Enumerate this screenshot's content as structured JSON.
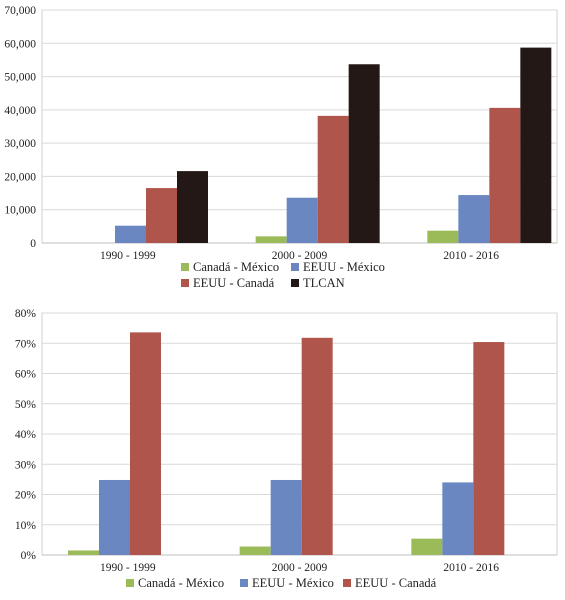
{
  "colors": {
    "Canadá - México": "#9bbb59",
    "EEUU - México": "#6a87c2",
    "EEUU - Canadá": "#b0554b",
    "TLCAN": "#231815"
  },
  "chart_data": [
    {
      "type": "bar",
      "categories": [
        "1990 - 1999",
        "2000 - 2009",
        "2010 - 2016"
      ],
      "series": [
        {
          "name": "Canadá - México",
          "values": [
            0,
            2000,
            3700
          ]
        },
        {
          "name": "EEUU - México",
          "values": [
            5200,
            13600,
            14400
          ]
        },
        {
          "name": "EEUU - Canadá",
          "values": [
            16500,
            38200,
            40600
          ]
        },
        {
          "name": "TLCAN",
          "values": [
            21600,
            53700,
            58700
          ]
        }
      ],
      "ylim": [
        0,
        70000
      ],
      "yticks": [
        "0",
        "10,000",
        "20,000",
        "30,000",
        "40,000",
        "50,000",
        "60,000",
        "70,000"
      ],
      "grid": true,
      "legend_position": "bottom"
    },
    {
      "type": "bar",
      "categories": [
        "1990 - 1999",
        "2000 - 2009",
        "2010 - 2016"
      ],
      "series": [
        {
          "name": "Canadá - México",
          "values": [
            1.5,
            2.8,
            5.4
          ]
        },
        {
          "name": "EEUU - México",
          "values": [
            24.8,
            24.8,
            24
          ]
        },
        {
          "name": "EEUU - Canadá",
          "values": [
            73.6,
            71.8,
            70.4
          ]
        }
      ],
      "ylim": [
        0,
        80
      ],
      "yticks": [
        "0%",
        "10%",
        "20%",
        "30%",
        "40%",
        "50%",
        "60%",
        "70%",
        "80%"
      ],
      "grid": true,
      "legend_position": "bottom"
    }
  ]
}
